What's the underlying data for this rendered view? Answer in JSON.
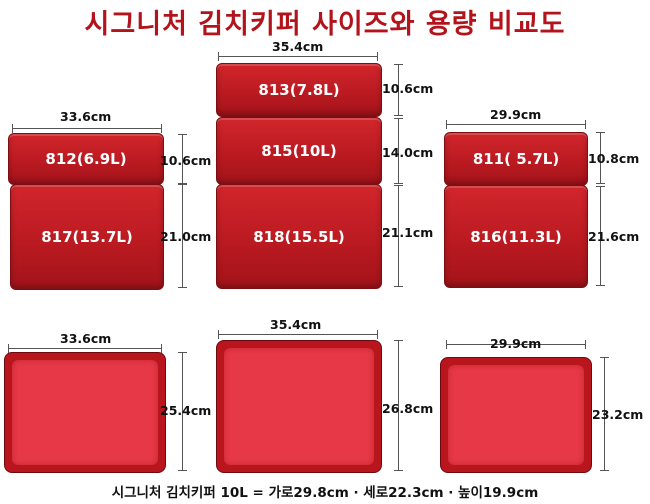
{
  "title": "시그니처 김치키퍼 사이즈와 용량 비교도",
  "containers": {
    "c812": "812(6.9L)",
    "c817": "817(13.7L)",
    "c813": "813(7.8L)",
    "c815": "815(10L)",
    "c818": "818(15.5L)",
    "c811": "811( 5.7L)",
    "c816": "816(11.3L)"
  },
  "dimensions": {
    "left_width": "33.6cm",
    "left_upper_height": "10.6cm",
    "left_lower_height": "21.0cm",
    "middle_width": "35.4cm",
    "middle_top_height": "10.6cm",
    "middle_mid_height": "14.0cm",
    "middle_bottom_height": "21.1cm",
    "right_width": "29.9cm",
    "right_upper_height": "10.8cm",
    "right_lower_height": "21.6cm",
    "lid_left_width": "33.6cm",
    "lid_left_depth": "25.4cm",
    "lid_middle_width": "35.4cm",
    "lid_middle_depth": "26.8cm",
    "lid_right_width": "29.9cm",
    "lid_right_depth": "23.2cm"
  },
  "footer": "시그니처 김치키퍼 10L = 가로29.8cm · 세로22.3cm · 높이19.9cm",
  "colors": {
    "title": "#b3141c",
    "container": "#c41e25",
    "lid_inner": "#e63846"
  }
}
